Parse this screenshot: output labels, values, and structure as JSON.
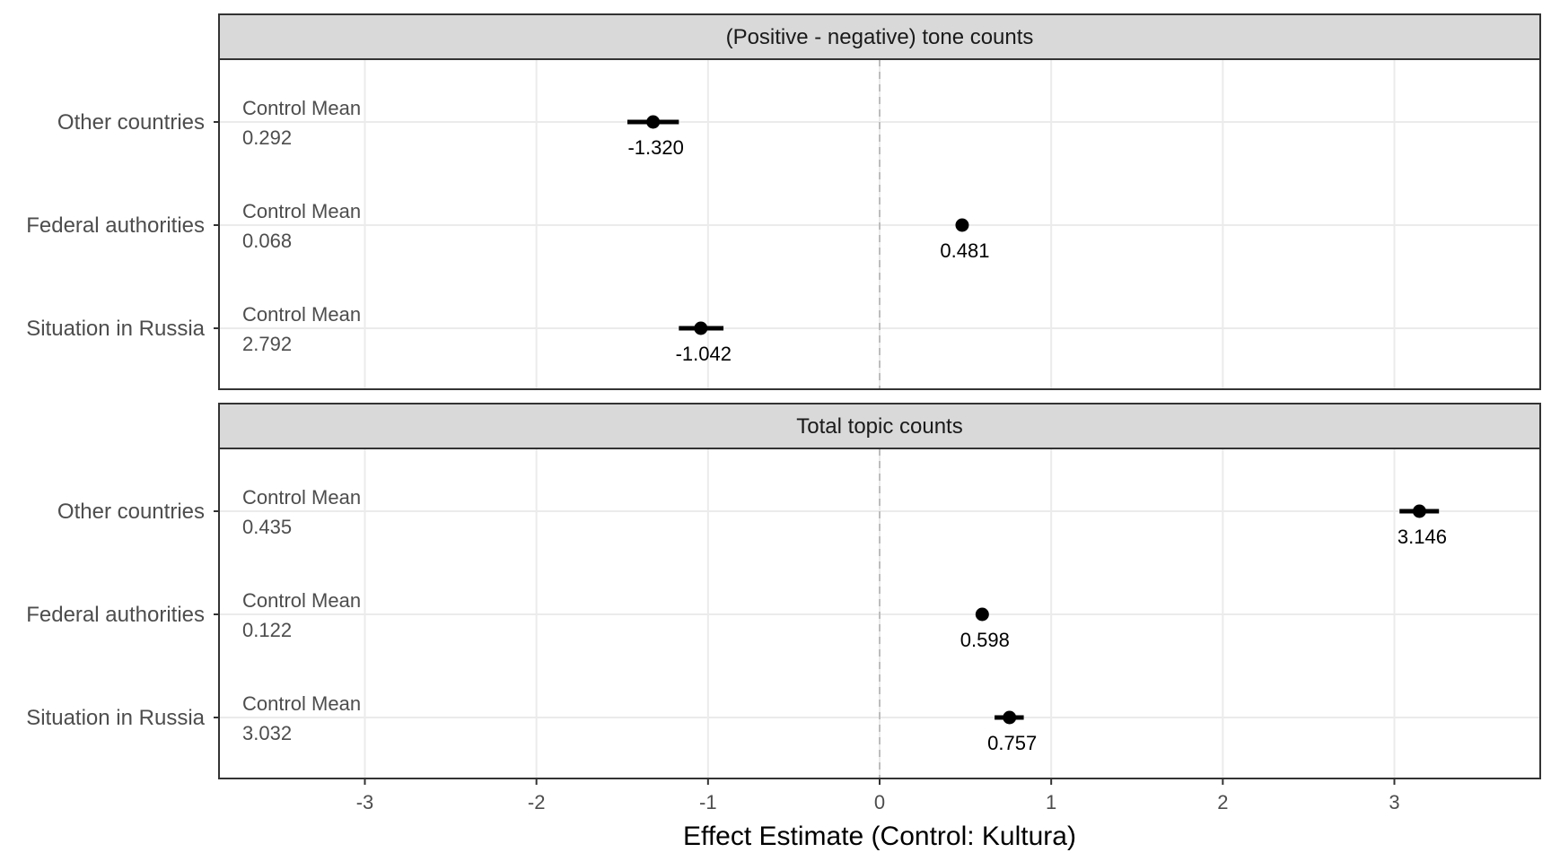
{
  "chart_data": {
    "type": "scatter",
    "xlabel": "Effect Estimate (Control: Kultura)",
    "xlim": [
      -3.85,
      3.85
    ],
    "x_ticks": [
      "-3",
      "-2",
      "-1",
      "0",
      "1",
      "2",
      "3"
    ],
    "reference_line_x": 0,
    "grid": true,
    "control_mean_label": "Control Mean",
    "rows": [
      "Other countries",
      "Federal authorities",
      "Situation in Russia"
    ],
    "panels": [
      {
        "title": "(Positive - negative) tone counts",
        "points": [
          {
            "row": "Other countries",
            "estimate": -1.32,
            "ci_low": -1.47,
            "ci_high": -1.17,
            "label": "-1.320",
            "control_mean": "0.292"
          },
          {
            "row": "Federal authorities",
            "estimate": 0.481,
            "ci_low": 0.481,
            "ci_high": 0.481,
            "label": "0.481",
            "control_mean": "0.068"
          },
          {
            "row": "Situation in Russia",
            "estimate": -1.042,
            "ci_low": -1.17,
            "ci_high": -0.91,
            "label": "-1.042",
            "control_mean": "2.792"
          }
        ]
      },
      {
        "title": "Total topic counts",
        "points": [
          {
            "row": "Other countries",
            "estimate": 3.146,
            "ci_low": 3.03,
            "ci_high": 3.26,
            "label": "3.146",
            "control_mean": "0.435"
          },
          {
            "row": "Federal authorities",
            "estimate": 0.598,
            "ci_low": 0.598,
            "ci_high": 0.598,
            "label": "0.598",
            "control_mean": "0.122"
          },
          {
            "row": "Situation in Russia",
            "estimate": 0.757,
            "ci_low": 0.67,
            "ci_high": 0.84,
            "label": "0.757",
            "control_mean": "3.032"
          }
        ]
      }
    ]
  }
}
